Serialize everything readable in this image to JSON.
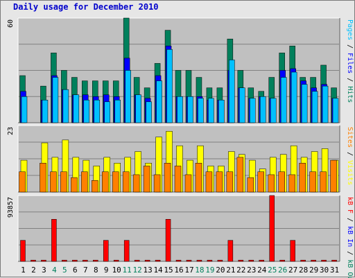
{
  "page": {
    "title": "Daily usage for December 2010"
  },
  "chart_data": [
    {
      "type": "bar",
      "name_id": "pages-files-hits",
      "ylim": [
        0,
        60
      ],
      "ymax_label": "60",
      "grid": true,
      "legend": {
        "position": "right",
        "entries": [
          {
            "text": "Pages",
            "color": "#00c0ff"
          },
          {
            "text": "Files",
            "color": "#0000ff"
          },
          {
            "text": "Hits",
            "color": "#00805c"
          }
        ],
        "separator": " / "
      },
      "categories": [
        "1",
        "2",
        "3",
        "4",
        "5",
        "6",
        "7",
        "8",
        "9",
        "10",
        "11",
        "12",
        "13",
        "14",
        "15",
        "16",
        "17",
        "18",
        "19",
        "20",
        "21",
        "22",
        "23",
        "24",
        "25",
        "26",
        "27",
        "28",
        "29",
        "30",
        "31"
      ],
      "series": [
        {
          "name": "Hits",
          "color": "#00805c",
          "values": [
            27,
            0,
            21,
            40,
            30,
            26,
            24,
            24,
            24,
            24,
            60,
            26,
            20,
            34,
            53,
            30,
            30,
            26,
            20,
            20,
            48,
            30,
            20,
            18,
            26,
            40,
            44,
            26,
            26,
            33,
            20
          ]
        },
        {
          "name": "Files",
          "color": "#0000ff",
          "values": [
            18,
            0,
            13,
            27,
            19,
            16,
            16,
            15,
            16,
            15,
            37,
            16,
            14,
            27,
            44,
            15,
            15,
            15,
            13,
            13,
            30,
            20,
            14,
            15,
            14,
            30,
            31,
            24,
            20,
            22,
            14
          ]
        },
        {
          "name": "Pages",
          "color": "#00c0ff",
          "values": [
            15,
            0,
            13,
            26,
            19,
            16,
            13,
            13,
            12,
            13,
            30,
            16,
            12,
            24,
            42,
            15,
            15,
            14,
            14,
            13,
            36,
            20,
            14,
            15,
            14,
            26,
            29,
            22,
            18,
            21,
            14
          ]
        }
      ]
    },
    {
      "type": "bar",
      "name_id": "visits-sites",
      "ylim": [
        0,
        23
      ],
      "ymax_label": "23",
      "grid": true,
      "legend": {
        "position": "right",
        "entries": [
          {
            "text": "Sites",
            "color": "#ff8000"
          },
          {
            "text": "Visits",
            "color": "#ffff00"
          }
        ],
        "separator": " / "
      },
      "categories": [
        "1",
        "2",
        "3",
        "4",
        "5",
        "6",
        "7",
        "8",
        "9",
        "10",
        "11",
        "12",
        "13",
        "14",
        "15",
        "16",
        "17",
        "18",
        "19",
        "20",
        "21",
        "22",
        "23",
        "24",
        "25",
        "26",
        "27",
        "28",
        "29",
        "30",
        "31"
      ],
      "series": [
        {
          "name": "Visits",
          "color": "#ffff00",
          "values": [
            11,
            0,
            17,
            12,
            18,
            12,
            11,
            9,
            12,
            10,
            12,
            14,
            10,
            19,
            21,
            16,
            11,
            16,
            9,
            9,
            14,
            13,
            11,
            8,
            12,
            13,
            16,
            12,
            14,
            15,
            11
          ]
        },
        {
          "name": "Sites",
          "color": "#ff8000",
          "values": [
            7,
            0,
            10,
            7,
            7,
            5,
            7,
            4,
            7,
            7,
            7,
            6,
            9,
            6,
            10,
            9,
            6,
            10,
            7,
            7,
            7,
            12,
            5,
            7,
            6,
            7,
            6,
            10,
            7,
            7,
            11
          ]
        }
      ]
    },
    {
      "type": "bar",
      "name_id": "kbytes",
      "ylim": [
        0,
        93857
      ],
      "ymax_label": "93857",
      "grid": true,
      "legend": {
        "position": "right",
        "entries": [
          {
            "text": "kB F",
            "color": "#ff0000"
          },
          {
            "text": "kB In",
            "color": "#0000ff"
          },
          {
            "text": "kB Out",
            "color": "#00805c"
          }
        ],
        "separator": " / "
      },
      "categories": [
        "1",
        "2",
        "3",
        "4",
        "5",
        "6",
        "7",
        "8",
        "9",
        "10",
        "11",
        "12",
        "13",
        "14",
        "15",
        "16",
        "17",
        "18",
        "19",
        "20",
        "21",
        "22",
        "23",
        "24",
        "25",
        "26",
        "27",
        "28",
        "29",
        "30",
        "31"
      ],
      "weekend_days": [
        "4",
        "5",
        "11",
        "12",
        "18",
        "19",
        "25",
        "26"
      ],
      "series": [
        {
          "name": "kB F",
          "color": "#ff0000",
          "values": [
            30000,
            1800,
            1800,
            60000,
            1800,
            1800,
            1800,
            1800,
            30000,
            1800,
            30000,
            1800,
            1800,
            1800,
            60000,
            1800,
            1800,
            1800,
            1800,
            1800,
            30000,
            1800,
            1800,
            1800,
            93857,
            1800,
            30000,
            1800,
            1800,
            1800,
            1800
          ]
        }
      ]
    }
  ]
}
